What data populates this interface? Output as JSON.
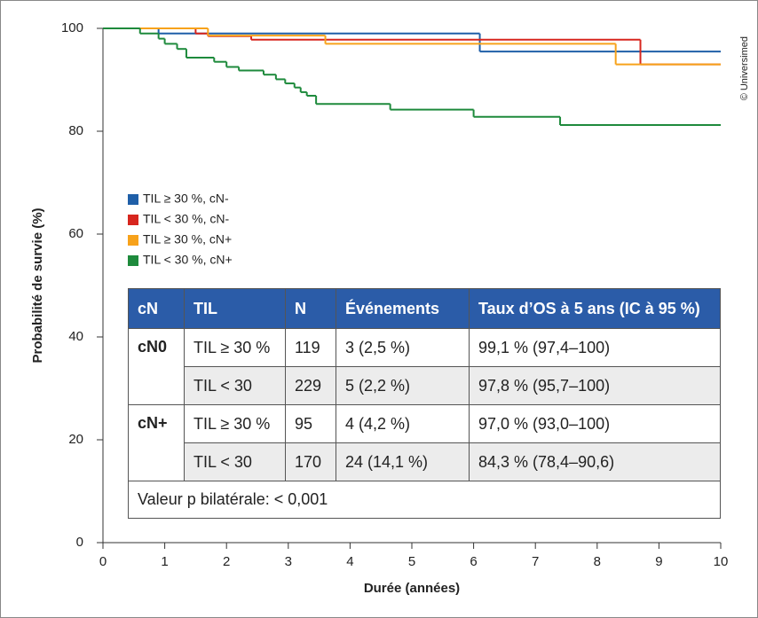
{
  "chart_data": {
    "type": "line",
    "step": "post",
    "y_label": "Probabilité de survie (%)",
    "x_label": "Durée (années)",
    "xlim": [
      0,
      10
    ],
    "ylim": [
      0,
      100
    ],
    "xticks": [
      0,
      1,
      2,
      3,
      4,
      5,
      6,
      7,
      8,
      9,
      10
    ],
    "yticks": [
      0,
      20,
      40,
      60,
      80,
      100
    ],
    "series": [
      {
        "name": "TIL ≥ 30 %, cN-",
        "color": "#1f5fa8",
        "x": [
          0,
          0.9,
          6.1
        ],
        "values": [
          100,
          99,
          95.5
        ]
      },
      {
        "name": "TIL < 30 %, cN-",
        "color": "#d7261e",
        "x": [
          0,
          1.5,
          1.7,
          2.4,
          8.7
        ],
        "values": [
          100,
          99,
          98.5,
          97.8,
          93
        ]
      },
      {
        "name": "TIL ≥ 30 %, cN+",
        "color": "#f7a21b",
        "x": [
          0,
          1.7,
          3.6,
          8.3
        ],
        "values": [
          100,
          98.6,
          97,
          93
        ]
      },
      {
        "name": "TIL < 30 %, cN+",
        "color": "#1e8a3c",
        "x": [
          0,
          0.6,
          0.9,
          1.0,
          1.2,
          1.35,
          1.8,
          2.0,
          2.2,
          2.6,
          2.8,
          2.95,
          3.1,
          3.2,
          3.3,
          3.45,
          4.65,
          6.0,
          7.4
        ],
        "values": [
          100,
          99,
          98,
          97,
          96,
          94.3,
          93.5,
          92.5,
          91.8,
          91,
          90.1,
          89.3,
          88.5,
          87.6,
          86.9,
          85.3,
          84.2,
          82.8,
          81.2
        ]
      }
    ]
  },
  "table": {
    "header": [
      "cN",
      "TIL",
      "N",
      "Événements",
      "Taux d’OS à 5 ans (IC à 95 %)"
    ],
    "groups": [
      {
        "label": "cN0",
        "rows": [
          [
            "TIL ≥ 30 %",
            "119",
            "3 (2,5 %)",
            "99,1 % (97,4–100)"
          ],
          [
            "TIL < 30",
            "229",
            "5 (2,2 %)",
            "97,8 % (95,7–100)"
          ]
        ]
      },
      {
        "label": "cN+",
        "rows": [
          [
            "TIL ≥ 30 %",
            "95",
            "4 (4,2 %)",
            "97,0 % (93,0–100)"
          ],
          [
            "TIL < 30",
            "170",
            "24 (14,1 %)",
            "84,3 % (78,4–90,6)"
          ]
        ]
      }
    ],
    "footer": "Valeur p bilatérale: < 0,001"
  },
  "credit": "© Universimed"
}
